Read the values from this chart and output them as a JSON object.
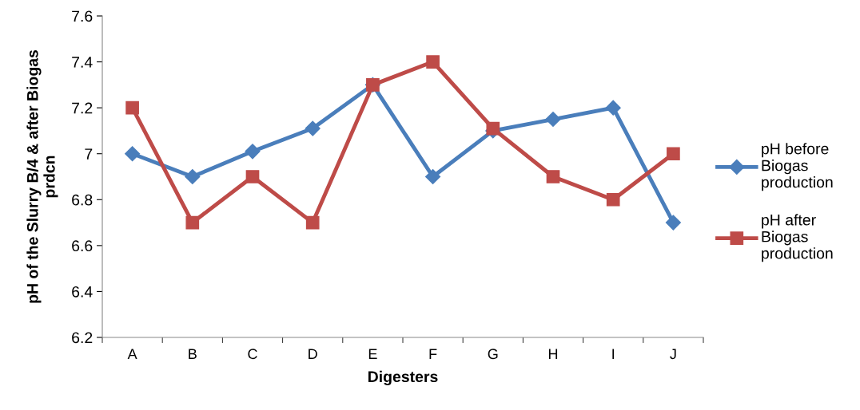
{
  "chart_data": {
    "type": "line",
    "xlabel": "Digesters",
    "ylabel": "pH of the Slurry B/4 & after Biogas\nprdcn",
    "categories": [
      "A",
      "B",
      "C",
      "D",
      "E",
      "F",
      "G",
      "H",
      "I",
      "J"
    ],
    "series": [
      {
        "name": "pH before\nBiogas\nproduction",
        "color": "#4a7ebb",
        "marker": "diamond",
        "values": [
          7.0,
          6.9,
          7.01,
          7.11,
          7.3,
          6.9,
          7.1,
          7.15,
          7.2,
          6.7
        ]
      },
      {
        "name": "pH after\nBiogas\nproduction",
        "color": "#be4b48",
        "marker": "square",
        "values": [
          7.2,
          6.7,
          6.9,
          6.7,
          7.3,
          7.4,
          7.11,
          6.9,
          6.8,
          7.0
        ]
      }
    ],
    "ylim": [
      6.2,
      7.6
    ],
    "yticks": [
      6.2,
      6.4,
      6.6,
      6.8,
      7,
      7.2,
      7.4,
      7.6
    ],
    "grid": false,
    "legend": "right"
  }
}
